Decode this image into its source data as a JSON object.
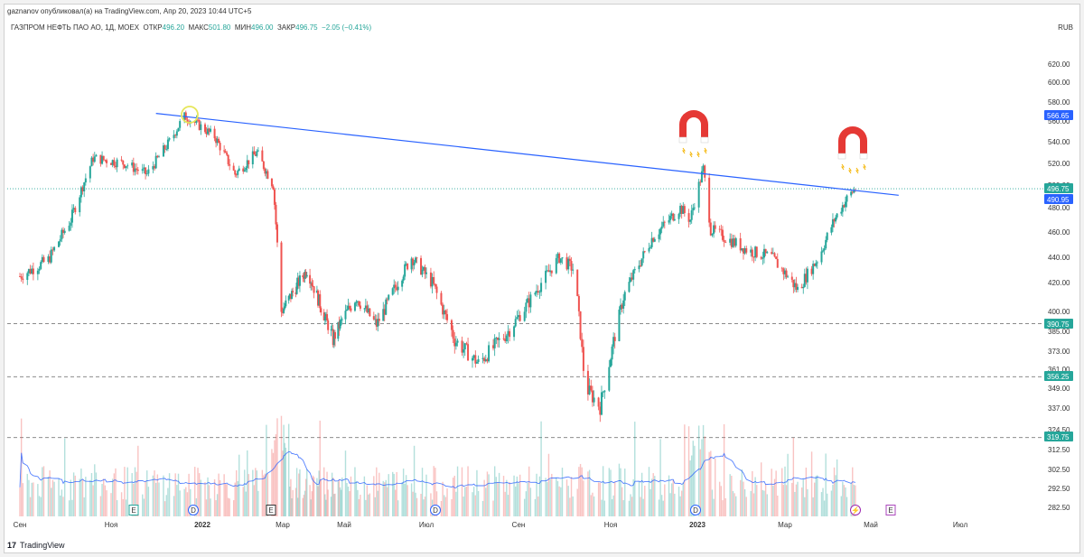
{
  "header": {
    "publisher": "gaznanov опубликовал(а) на TradingView.com, Апр 20, 2023 10:44 UTC+5",
    "symbol": "ГАЗПРОМ НЕФТЬ ПАО АО, 1Д, MOEX",
    "open_label": "ОТКР",
    "open_value": "496.20",
    "high_label": "МАКС",
    "high_value": "501.80",
    "low_label": "МИН",
    "low_value": "496.00",
    "close_label": "ЗАКР",
    "close_value": "496.75",
    "change": "−2.05 (−0.41%)",
    "currency": "RUB"
  },
  "brand": {
    "logo": "17",
    "name": "TradingView"
  },
  "colors": {
    "up": "#26a69a",
    "down": "#ef5350",
    "trendline": "#2962ff",
    "price_line": "#26a69a",
    "support_line": "#888888",
    "volume_ma": "#2962ff",
    "magnet_red": "#e53935",
    "circle": "#e6e65a",
    "tag_blue": "#2962ff",
    "tag_green": "#26a69a"
  },
  "chart_data": {
    "type": "candlestick",
    "y_axis_ticks": [
      "620.00",
      "600.00",
      "580.00",
      "560.00",
      "540.00",
      "520.00",
      "500.00",
      "480.00",
      "460.00",
      "440.00",
      "420.00",
      "400.00",
      "385.00",
      "373.00",
      "361.00",
      "349.00",
      "337.00",
      "324.50",
      "312.50",
      "302.50",
      "292.50",
      "282.50"
    ],
    "x_axis_ticks": [
      {
        "label": "Сен",
        "bold": false
      },
      {
        "label": "Ноя",
        "bold": false
      },
      {
        "label": "2022",
        "bold": true
      },
      {
        "label": "Мар",
        "bold": false
      },
      {
        "label": "Май",
        "bold": false
      },
      {
        "label": "Июл",
        "bold": false
      },
      {
        "label": "Сен",
        "bold": false
      },
      {
        "label": "Ноя",
        "bold": false
      },
      {
        "label": "2023",
        "bold": true
      },
      {
        "label": "Мар",
        "bold": false
      },
      {
        "label": "Май",
        "bold": false
      },
      {
        "label": "Июл",
        "bold": false
      }
    ],
    "price_tags": [
      {
        "value": "566.65",
        "kind": "trendline"
      },
      {
        "value": "496.75",
        "kind": "last"
      },
      {
        "value": "490.95",
        "kind": "trendline2"
      },
      {
        "value": "390.75",
        "kind": "support"
      },
      {
        "value": "356.25",
        "kind": "support"
      },
      {
        "value": "319.75",
        "kind": "support"
      }
    ],
    "support_levels": [
      390.75,
      356.25,
      319.75
    ],
    "trendline": {
      "start_date": "2021-12-01",
      "start": 568,
      "end_date": "2023-05-20",
      "end": 490.95
    },
    "last_price": 496.75,
    "events": [
      {
        "label": "E",
        "kind": "earnings"
      },
      {
        "label": "D",
        "kind": "dividend"
      },
      {
        "label": "E",
        "kind": "earnings"
      },
      {
        "label": "D",
        "kind": "dividend"
      },
      {
        "label": "D",
        "kind": "dividend"
      },
      {
        "label": "⚡",
        "kind": "split"
      },
      {
        "label": "E",
        "kind": "earnings"
      }
    ],
    "path_anchors": [
      {
        "date": "2021-09-01",
        "price": 425
      },
      {
        "date": "2021-09-20",
        "price": 438
      },
      {
        "date": "2021-10-05",
        "price": 470
      },
      {
        "date": "2021-10-20",
        "price": 525
      },
      {
        "date": "2021-11-10",
        "price": 520
      },
      {
        "date": "2021-11-25",
        "price": 510
      },
      {
        "date": "2021-12-10",
        "price": 540
      },
      {
        "date": "2021-12-20",
        "price": 565
      },
      {
        "date": "2022-01-10",
        "price": 545
      },
      {
        "date": "2022-01-25",
        "price": 510
      },
      {
        "date": "2022-02-10",
        "price": 530
      },
      {
        "date": "2022-02-22",
        "price": 500
      },
      {
        "date": "2022-02-28",
        "price": 400
      },
      {
        "date": "2022-03-25",
        "price": 430
      },
      {
        "date": "2022-04-20",
        "price": 380
      },
      {
        "date": "2022-05-10",
        "price": 410
      },
      {
        "date": "2022-05-25",
        "price": 390
      },
      {
        "date": "2022-06-20",
        "price": 440
      },
      {
        "date": "2022-07-05",
        "price": 420
      },
      {
        "date": "2022-07-20",
        "price": 380
      },
      {
        "date": "2022-08-05",
        "price": 365
      },
      {
        "date": "2022-08-25",
        "price": 385
      },
      {
        "date": "2022-09-10",
        "price": 410
      },
      {
        "date": "2022-09-28",
        "price": 440
      },
      {
        "date": "2022-10-08",
        "price": 430
      },
      {
        "date": "2022-10-15",
        "price": 350
      },
      {
        "date": "2022-10-25",
        "price": 338
      },
      {
        "date": "2022-11-10",
        "price": 410
      },
      {
        "date": "2022-11-30",
        "price": 455
      },
      {
        "date": "2022-12-20",
        "price": 480
      },
      {
        "date": "2022-12-27",
        "price": 470
      },
      {
        "date": "2023-01-05",
        "price": 515
      },
      {
        "date": "2023-01-10",
        "price": 462
      },
      {
        "date": "2023-02-05",
        "price": 445
      },
      {
        "date": "2023-02-20",
        "price": 440
      },
      {
        "date": "2023-03-10",
        "price": 415
      },
      {
        "date": "2023-03-25",
        "price": 440
      },
      {
        "date": "2023-04-05",
        "price": 470
      },
      {
        "date": "2023-04-15",
        "price": 490
      },
      {
        "date": "2023-04-20",
        "price": 496.75
      }
    ]
  }
}
